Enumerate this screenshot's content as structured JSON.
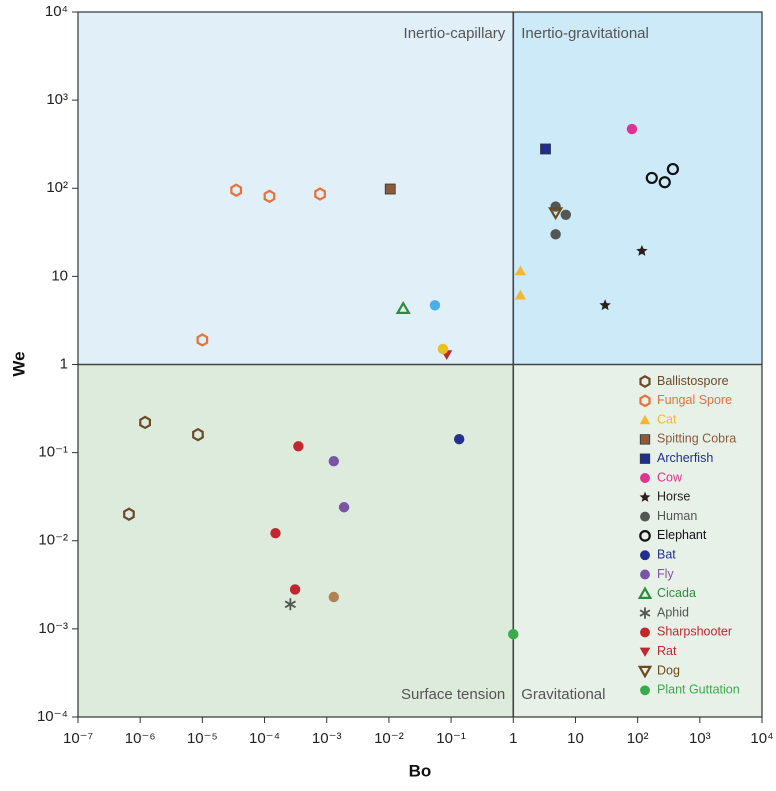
{
  "chart_data": {
    "type": "scatter",
    "xlabel": "Bo",
    "ylabel": "We",
    "xscale": "log",
    "yscale": "log",
    "xlim": [
      1e-07,
      10000
    ],
    "ylim": [
      0.0001,
      10000
    ],
    "xticks": [
      {
        "value": 1e-07,
        "label": "10⁻⁷"
      },
      {
        "value": 1e-06,
        "label": "10⁻⁶"
      },
      {
        "value": 1e-05,
        "label": "10⁻⁵"
      },
      {
        "value": 0.0001,
        "label": "10⁻⁴"
      },
      {
        "value": 0.001,
        "label": "10⁻³"
      },
      {
        "value": 0.01,
        "label": "10⁻²"
      },
      {
        "value": 0.1,
        "label": "10⁻¹"
      },
      1,
      10,
      {
        "value": 100,
        "label": "10²"
      },
      {
        "value": 1000,
        "label": "10³"
      },
      {
        "value": 10000,
        "label": "10⁴"
      }
    ],
    "yticks": [
      {
        "value": 0.0001,
        "label": "10⁻⁴"
      },
      {
        "value": 0.001,
        "label": "10⁻³"
      },
      {
        "value": 0.01,
        "label": "10⁻²"
      },
      {
        "value": 0.1,
        "label": "10⁻¹"
      },
      1,
      10,
      {
        "value": 100,
        "label": "10²"
      },
      {
        "value": 1000,
        "label": "10³"
      },
      {
        "value": 10000,
        "label": "10⁴"
      }
    ],
    "dividers": {
      "x": 1,
      "y": 1
    },
    "regions": [
      "Inertio-capillary",
      "Inertio-gravitational",
      "Surface tension",
      "Gravitational"
    ],
    "legend": "lower right",
    "series": [
      {
        "name": "Ballistospore",
        "color": "#6b4a2a",
        "marker": "hexagon-open",
        "x": [
          1.2e-06,
          8.5e-06,
          6.6e-07
        ],
        "values": [
          0.22,
          0.16,
          0.02
        ]
      },
      {
        "name": "Fungal Spore",
        "color": "#e8703a",
        "marker": "hexagon-open",
        "x": [
          3.5e-05,
          0.00012,
          0.00078,
          1e-05
        ],
        "values": [
          95,
          81,
          86,
          1.9
        ]
      },
      {
        "name": "Cat",
        "color": "#f5b731",
        "marker": "triangle",
        "x": [
          1.3,
          1.3
        ],
        "values": [
          11.5,
          6.1
        ]
      },
      {
        "name": "Spitting Cobra",
        "color": "#8b5a3c",
        "marker": "square",
        "x": [
          0.0105
        ],
        "values": [
          98
        ]
      },
      {
        "name": "Archerfish",
        "color": "#1f2f8f",
        "marker": "square",
        "x": [
          3.3
        ],
        "values": [
          279
        ]
      },
      {
        "name": "Cow",
        "color": "#e0338f",
        "marker": "circle",
        "x": [
          81
        ],
        "values": [
          470
        ]
      },
      {
        "name": "Horse",
        "color": "#2a1f1a",
        "marker": "star",
        "x": [
          117,
          30
        ],
        "values": [
          19.4,
          4.7
        ]
      },
      {
        "name": "Human",
        "color": "#555555",
        "marker": "circle",
        "x": [
          4.8,
          7,
          4.8
        ],
        "values": [
          62,
          50,
          30
        ]
      },
      {
        "name": "Elephant",
        "color": "#111111",
        "marker": "circle-open",
        "x": [
          169,
          273,
          369
        ],
        "values": [
          131,
          117,
          165
        ]
      },
      {
        "name": "Bat",
        "color": "#233090",
        "marker": "circle",
        "x": [
          0.135
        ],
        "values": [
          0.142
        ]
      },
      {
        "name": "Fly",
        "color": "#7a55a6",
        "marker": "circle",
        "x": [
          0.0013,
          0.0019
        ],
        "values": [
          0.08,
          0.024
        ]
      },
      {
        "name": "Cicada",
        "color": "#2e8b3e",
        "marker": "triangle-open",
        "x": [
          0.017
        ],
        "values": [
          4.3
        ]
      },
      {
        "name": "Aphid",
        "color": "#555555",
        "marker": "asterisk",
        "x": [
          0.00026
        ],
        "values": [
          0.0019
        ]
      },
      {
        "name": "Sharpshooter",
        "color": "#c0282e",
        "marker": "circle",
        "x": [
          0.00035,
          0.00015,
          0.00031
        ],
        "values": [
          0.118,
          0.0122,
          0.0028
        ]
      },
      {
        "name": "Rat",
        "color": "#c0282e",
        "marker": "triangle-down",
        "x": [
          0.085
        ],
        "values": [
          1.3
        ]
      },
      {
        "name": "Dog",
        "color": "#6b4a1a",
        "marker": "triangle-down-open",
        "x": [
          4.8
        ],
        "values": [
          53
        ]
      },
      {
        "name": "Plant Guttation",
        "color": "#3aaa4a",
        "marker": "circle",
        "x": [
          1
        ],
        "values": [
          0.00087
        ]
      },
      {
        "color": "#4aaee8",
        "marker": "circle",
        "x": [
          0.055
        ],
        "values": [
          4.7
        ]
      },
      {
        "color": "#e8c020",
        "marker": "circle",
        "x": [
          0.074
        ],
        "values": [
          1.5
        ]
      },
      {
        "color": "#b08050",
        "marker": "circle",
        "x": [
          0.0013
        ],
        "values": [
          0.0023
        ]
      }
    ]
  }
}
